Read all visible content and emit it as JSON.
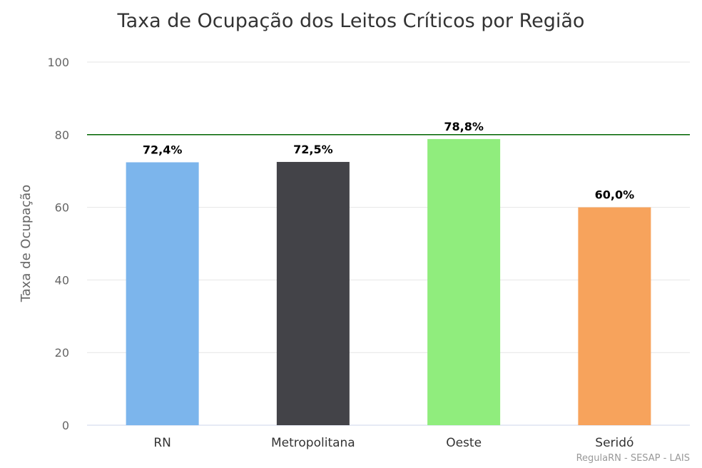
{
  "chart_data": {
    "type": "bar",
    "title": "Taxa de Ocupação dos Leitos Críticos por Região",
    "ylabel": "Taxa de Ocupação",
    "xlabel": "",
    "categories": [
      "RN",
      "Metropolitana",
      "Oeste",
      "Seridó"
    ],
    "values": [
      72.4,
      72.5,
      78.8,
      60.0
    ],
    "data_labels": [
      "72,4%",
      "72,5%",
      "78,8%",
      "60,0%"
    ],
    "bar_colors": [
      "#7cb5ec",
      "#434348",
      "#90ed7d",
      "#f7a35c"
    ],
    "ylim": [
      0,
      100
    ],
    "yticks": [
      0,
      20,
      40,
      60,
      80,
      100
    ],
    "reference_line": {
      "value": 80,
      "color": "#006400"
    },
    "grid": true,
    "legend": "none"
  },
  "credits": "RegulaRN - SESAP - LAIS"
}
